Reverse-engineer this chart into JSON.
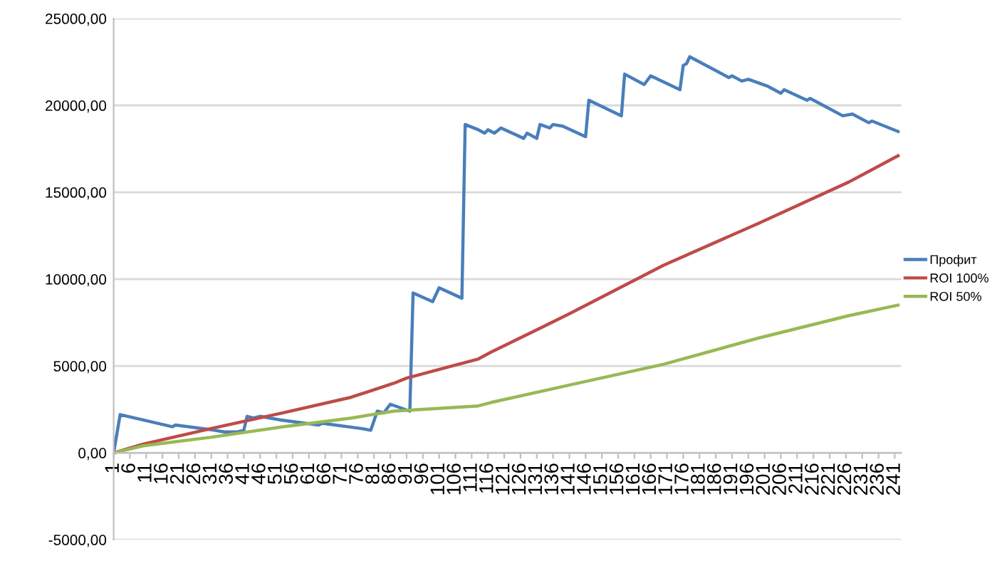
{
  "chart_data": {
    "type": "line",
    "legend": "right",
    "grid": "y",
    "marker": "none",
    "line_style": "solid",
    "xlim": [
      1,
      243
    ],
    "xticks": [
      1,
      6,
      11,
      16,
      21,
      26,
      31,
      36,
      41,
      46,
      51,
      56,
      61,
      66,
      71,
      76,
      81,
      86,
      91,
      96,
      101,
      106,
      111,
      116,
      121,
      126,
      131,
      136,
      141,
      146,
      151,
      156,
      161,
      166,
      171,
      176,
      181,
      186,
      191,
      196,
      201,
      206,
      211,
      216,
      221,
      226,
      231,
      236,
      241
    ],
    "ylim": [
      -5000,
      25000
    ],
    "yticks": [
      {
        "value": -5000,
        "label": "-5000,00"
      },
      {
        "value": 0,
        "label": "0,00"
      },
      {
        "value": 5000,
        "label": "5000,00"
      },
      {
        "value": 10000,
        "label": "10000,00"
      },
      {
        "value": 15000,
        "label": "15000,00"
      },
      {
        "value": 20000,
        "label": "20000,00"
      },
      {
        "value": 25000,
        "label": "25000,00"
      }
    ],
    "series": [
      {
        "name": "Профит",
        "color": "#4a7ebb",
        "x": [
          1,
          3,
          19,
          20,
          32,
          35,
          39,
          41,
          42,
          44,
          46,
          49,
          52,
          64,
          65,
          77,
          80,
          82,
          84,
          86,
          92,
          93,
          99,
          101,
          108,
          109,
          113,
          115,
          116,
          118,
          120,
          127,
          128,
          131,
          132,
          135,
          136,
          139,
          146,
          147,
          157,
          158,
          164,
          166,
          175,
          176,
          177,
          178,
          181,
          190,
          191,
          194,
          196,
          202,
          206,
          207,
          214,
          215,
          219,
          225,
          228,
          233,
          234,
          242
        ],
        "values": [
          0,
          2200,
          1500,
          1600,
          1300,
          1200,
          1200,
          1300,
          2100,
          2000,
          2100,
          2000,
          1900,
          1600,
          1700,
          1400,
          1300,
          2400,
          2300,
          2800,
          2400,
          9200,
          8700,
          9500,
          8900,
          18900,
          18600,
          18400,
          18600,
          18400,
          18700,
          18100,
          18400,
          18100,
          18900,
          18700,
          18900,
          18800,
          18200,
          20300,
          19400,
          21800,
          21200,
          21700,
          20900,
          22300,
          22400,
          22800,
          22500,
          21600,
          21700,
          21400,
          21500,
          21100,
          20700,
          20900,
          20300,
          20400,
          20000,
          19400,
          19500,
          19000,
          19100,
          18500
        ]
      },
      {
        "name": "ROI 100%",
        "color": "#be4b48",
        "x": [
          1,
          10,
          31,
          53,
          74,
          87,
          91,
          113,
          117,
          141,
          170,
          199,
          227,
          242
        ],
        "values": [
          0,
          500,
          1400,
          2300,
          3200,
          4000,
          4300,
          5400,
          5800,
          8000,
          10800,
          13200,
          15600,
          17100
        ]
      },
      {
        "name": "ROI 50%",
        "color": "#98b954",
        "x": [
          1,
          10,
          31,
          53,
          74,
          87,
          113,
          117,
          141,
          170,
          199,
          227,
          242
        ],
        "values": [
          0,
          400,
          900,
          1500,
          2000,
          2400,
          2700,
          2900,
          3900,
          5100,
          6600,
          7900,
          8500
        ]
      }
    ]
  }
}
